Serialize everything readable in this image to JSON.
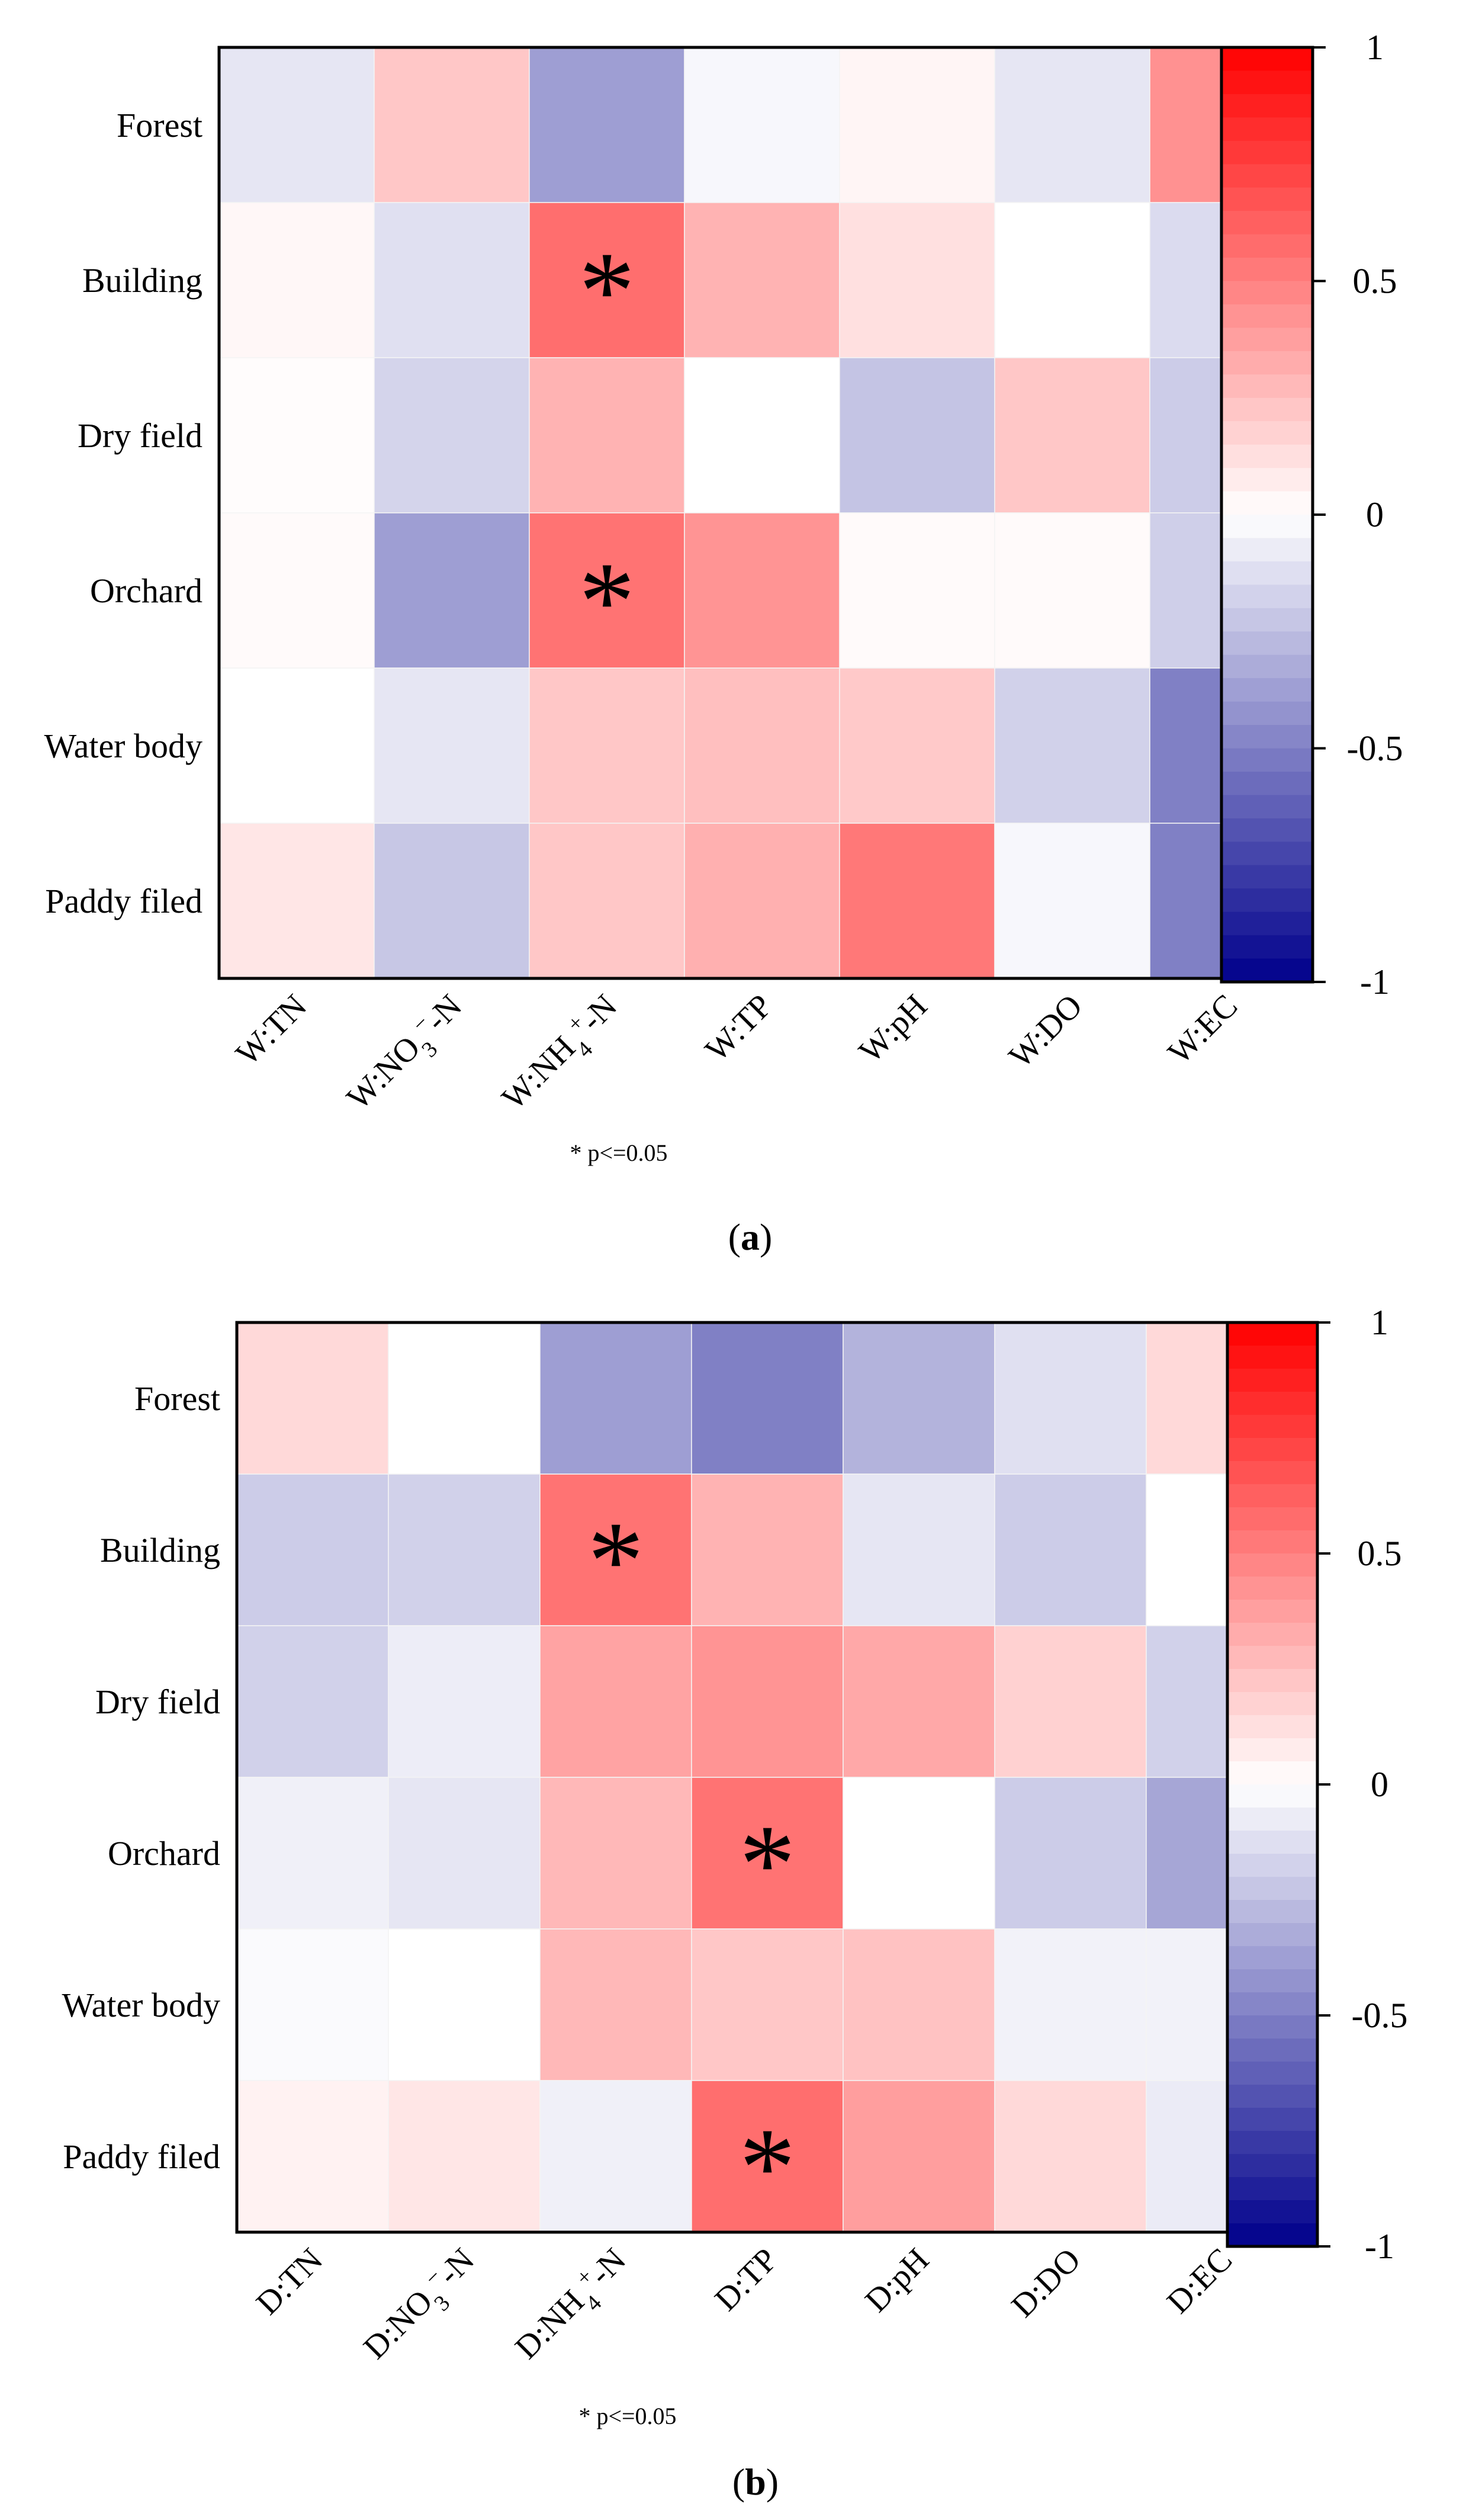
{
  "colors": {
    "negative_end": "#00008b",
    "zero": "#ffffff",
    "positive_end": "#ff0000"
  },
  "chart_data": [
    {
      "type": "heatmap",
      "panel_label": "a",
      "rows": [
        "Forest",
        "Building",
        "Dry field",
        "Orchard",
        "Water body",
        "Paddy filed"
      ],
      "columns": [
        {
          "prefix": "W:",
          "base": "TN"
        },
        {
          "prefix": "W:",
          "base": "NO",
          "sub": "3",
          "sup": "−",
          "suffix": "-N"
        },
        {
          "prefix": "W:",
          "base": "NH",
          "sub": "4",
          "sup": "+",
          "suffix": "-N"
        },
        {
          "prefix": "W:",
          "base": "TP"
        },
        {
          "prefix": "W:",
          "base": "pH"
        },
        {
          "prefix": "W:",
          "base": "DO"
        },
        {
          "prefix": "W:",
          "base": "EC"
        }
      ],
      "values": [
        [
          -0.1,
          0.22,
          -0.38,
          -0.03,
          0.04,
          -0.1,
          0.43
        ],
        [
          0.03,
          -0.12,
          0.57,
          0.3,
          0.12,
          0.0,
          -0.14
        ],
        [
          0.01,
          -0.17,
          0.3,
          0.0,
          -0.23,
          0.22,
          -0.2
        ],
        [
          0.02,
          -0.38,
          0.55,
          0.42,
          0.02,
          0.02,
          -0.19
        ],
        [
          0.0,
          -0.1,
          0.22,
          0.25,
          0.21,
          -0.18,
          -0.5
        ],
        [
          0.1,
          -0.22,
          0.22,
          0.31,
          0.53,
          -0.03,
          -0.5
        ]
      ],
      "significant": [
        [
          1,
          2
        ],
        [
          3,
          2
        ]
      ],
      "colorbar": {
        "min": -1,
        "max": 1,
        "ticks": [
          "1",
          "0.5",
          "0",
          "-0.5",
          "-1"
        ]
      },
      "note": "* p<=0.05"
    },
    {
      "type": "heatmap",
      "panel_label": "b",
      "rows": [
        "Forest",
        "Building",
        "Dry field",
        "Orchard",
        "Water body",
        "Paddy filed"
      ],
      "columns": [
        {
          "prefix": "D:",
          "base": "TN"
        },
        {
          "prefix": "D:",
          "base": "NO",
          "sub": "3",
          "sup": "−",
          "suffix": "-N"
        },
        {
          "prefix": "D:",
          "base": "NH",
          "sub": "4",
          "sup": "+",
          "suffix": "-N"
        },
        {
          "prefix": "D:",
          "base": "TP"
        },
        {
          "prefix": "D:",
          "base": "pH"
        },
        {
          "prefix": "D:",
          "base": "DO"
        },
        {
          "prefix": "D:",
          "base": "EC"
        }
      ],
      "values": [
        [
          0.15,
          0.0,
          -0.38,
          -0.5,
          -0.3,
          -0.12,
          0.15
        ],
        [
          -0.2,
          -0.18,
          0.55,
          0.3,
          -0.1,
          -0.2,
          0.0
        ],
        [
          -0.18,
          -0.07,
          0.36,
          0.42,
          0.34,
          0.18,
          -0.18
        ],
        [
          -0.06,
          -0.1,
          0.28,
          0.55,
          0.0,
          -0.2,
          -0.35
        ],
        [
          -0.02,
          0.0,
          0.28,
          0.22,
          0.24,
          -0.05,
          -0.05
        ],
        [
          0.05,
          0.1,
          -0.06,
          0.57,
          0.38,
          0.15,
          -0.08
        ]
      ],
      "significant": [
        [
          1,
          2
        ],
        [
          3,
          3
        ],
        [
          5,
          3
        ]
      ],
      "colorbar": {
        "min": -1,
        "max": 1,
        "ticks": [
          "1",
          "0.5",
          "0",
          "-0.5",
          "-1"
        ]
      },
      "note": "* p<=0.05"
    }
  ]
}
